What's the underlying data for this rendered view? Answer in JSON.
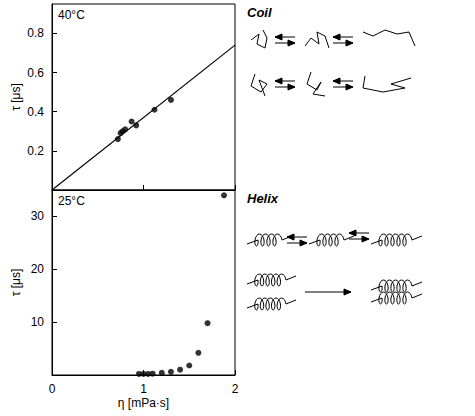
{
  "chart_data": [
    {
      "type": "scatter",
      "annotations": [
        "40°C",
        "Coil"
      ],
      "y_label": "τ [μs]",
      "xlim": [
        0,
        2
      ],
      "xticks": [
        0,
        1,
        2
      ],
      "ylim": [
        0,
        0.95
      ],
      "yticks": [
        0.2,
        0.4,
        0.6,
        0.8
      ],
      "tick_labels": "y",
      "grid": false,
      "series": [
        {
          "type": "scatter",
          "marker": "circle",
          "color": "#000000",
          "x": [
            0.72,
            0.75,
            0.77,
            0.8,
            0.87,
            0.92,
            1.12,
            1.3
          ],
          "values": [
            0.26,
            0.29,
            0.3,
            0.31,
            0.35,
            0.33,
            0.41,
            0.46
          ]
        },
        {
          "type": "line",
          "line_style": "solid",
          "color": "#000000",
          "x": [
            0,
            2
          ],
          "values": [
            0,
            0.74
          ]
        }
      ]
    },
    {
      "type": "scatter",
      "annotations": [
        "25°C",
        "Helix"
      ],
      "x_label": "η [mPa·s]",
      "y_label": "τ [μs]",
      "xlim": [
        0,
        2
      ],
      "xticks": [
        0,
        1,
        2
      ],
      "ylim": [
        0,
        35
      ],
      "yticks": [
        10,
        20,
        30
      ],
      "tick_labels": true,
      "grid": false,
      "series": [
        {
          "type": "scatter",
          "marker": "circle",
          "color": "#000000",
          "x": [
            0.95,
            1.0,
            1.05,
            1.1,
            1.2,
            1.3,
            1.4,
            1.5,
            1.6,
            1.7,
            1.88
          ],
          "values": [
            0.2,
            0.2,
            0.2,
            0.25,
            0.4,
            0.6,
            1.0,
            1.8,
            4.2,
            9.8,
            34
          ]
        }
      ]
    }
  ]
}
